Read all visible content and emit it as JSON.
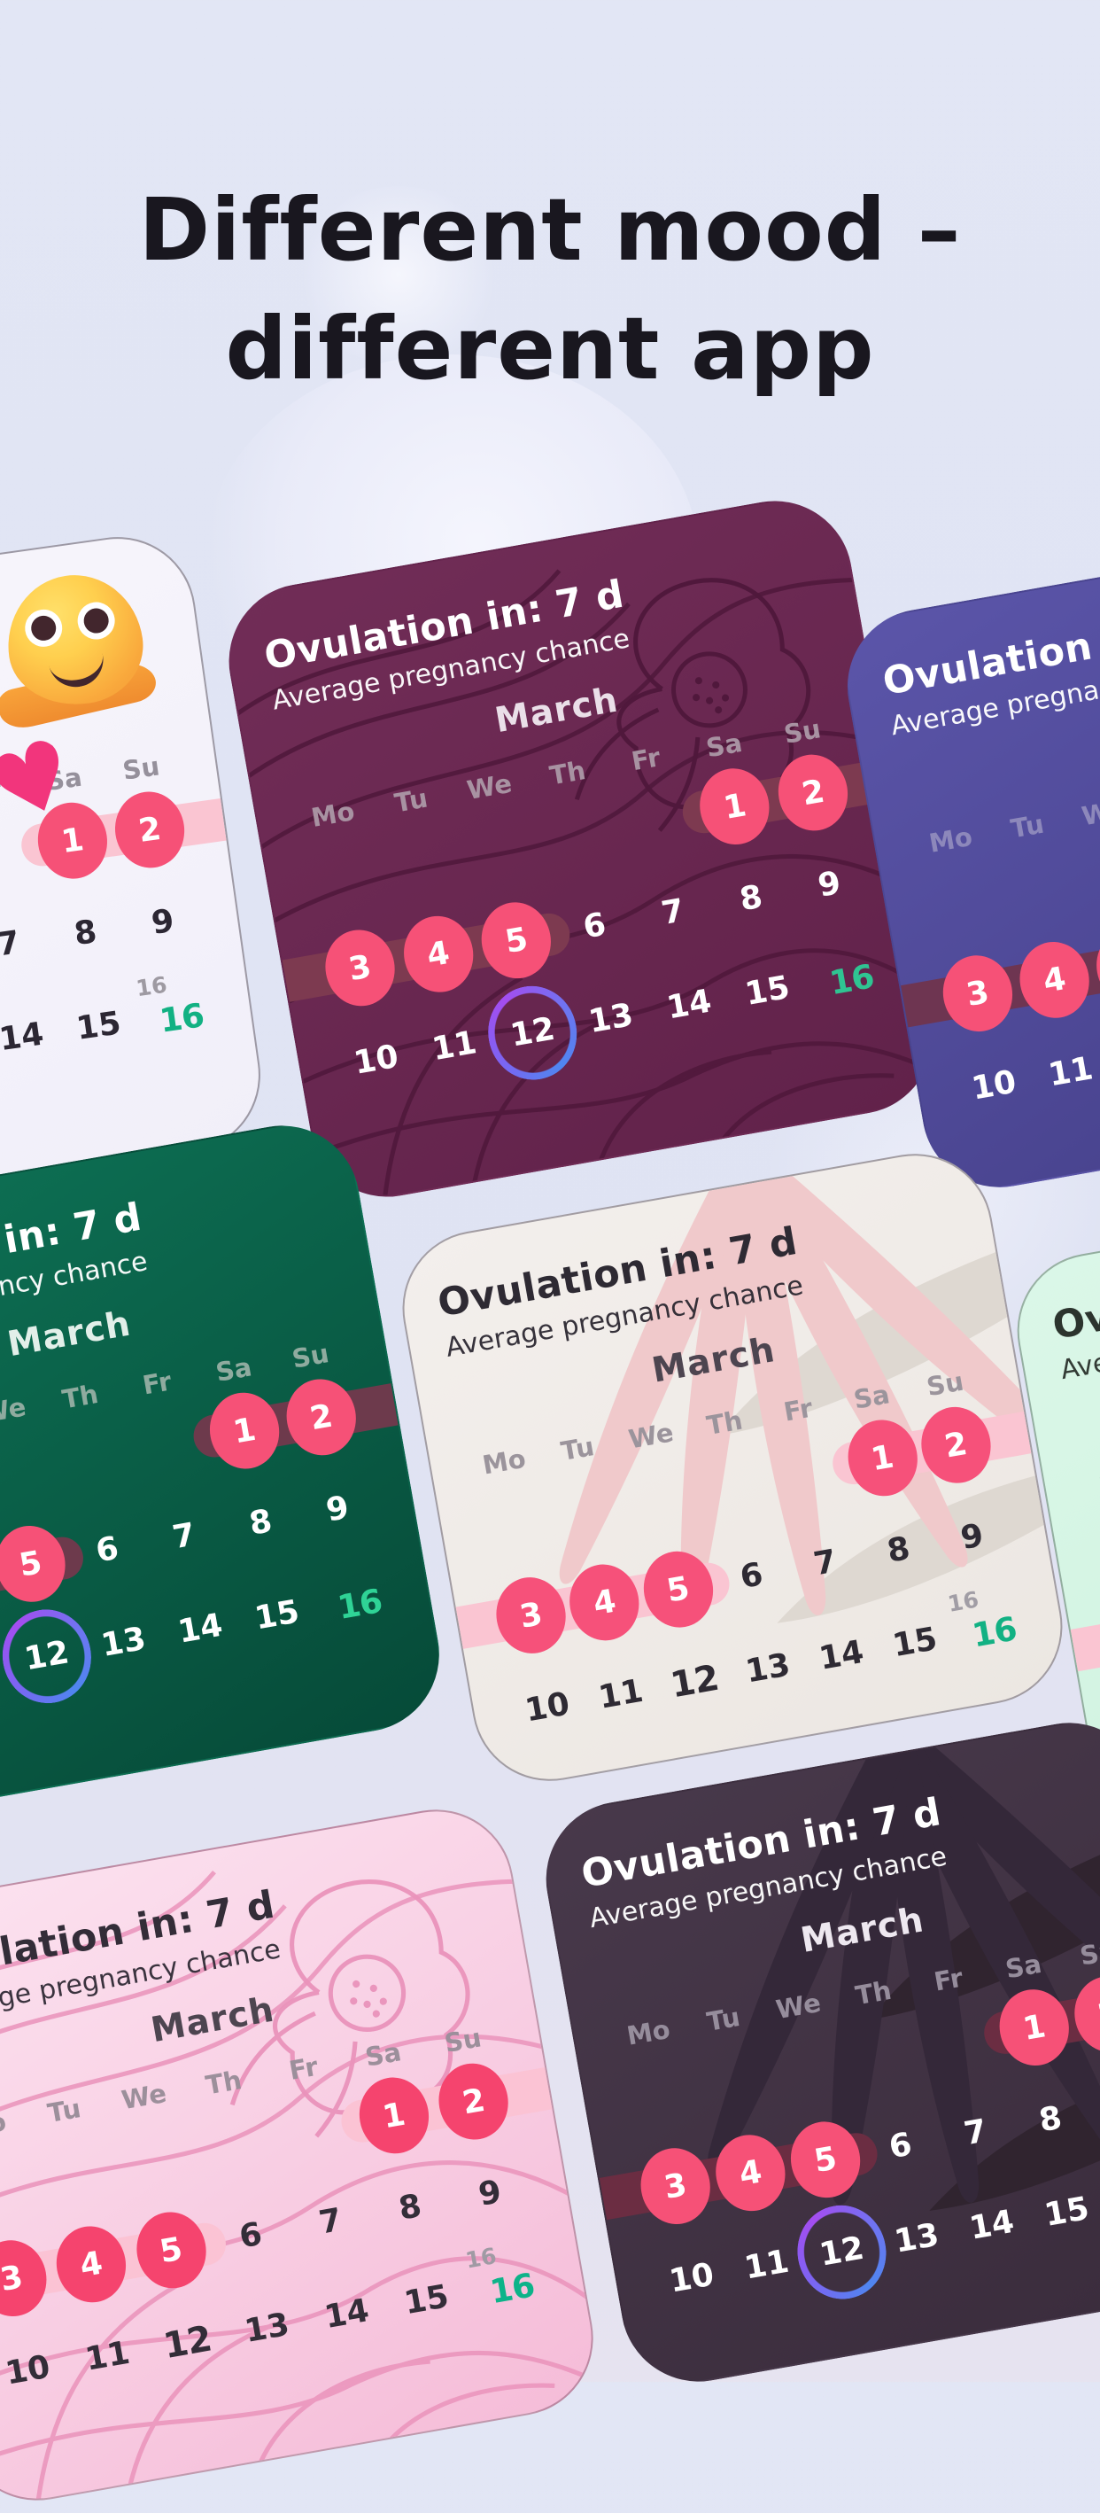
{
  "page": {
    "title_line1": "Different mood –",
    "title_line2": "different app",
    "background": "#e0e4f3",
    "title_color": "#19171f"
  },
  "calendar": {
    "ovulation_label": "Ovulation in: 7 d",
    "subtitle": "Average pregnancy chance",
    "month": "March",
    "weekdays": [
      "Mo",
      "Tu",
      "We",
      "Th",
      "Fr",
      "Sa",
      "Su"
    ],
    "week1_days": [
      "1",
      "2"
    ],
    "week2_days": [
      "3",
      "4",
      "5",
      "6",
      "7",
      "8",
      "9"
    ],
    "week3_days": [
      "10",
      "11",
      "12",
      "13",
      "14",
      "15"
    ],
    "today_day": "16",
    "ghost_day": "16",
    "period_days": [
      "1",
      "2",
      "3",
      "4",
      "5"
    ],
    "ovulation_ring_day": "12"
  },
  "emoji_card": {
    "emoji_name": "melting-face-emoji",
    "heart_glyph": "♥"
  },
  "accent_colors": {
    "period_pink": "#f6517a",
    "today_green": "#12b183",
    "ring_gradient": [
      "#4f86f0",
      "#a44df0"
    ]
  },
  "cards": [
    {
      "id": "white",
      "label": "white-emoji-theme",
      "pattern": "none",
      "has_emoji": true,
      "show_header": false,
      "twelve": "bold",
      "ghost16": true,
      "colors": {
        "bg1": "#f8f6fc",
        "bg2": "#f1eff9",
        "text": "#2c2733",
        "weekday": "#95909b",
        "month": "#4a434f",
        "band": "#fac5d2",
        "circle": "#f65177",
        "ctext": "#ffffff",
        "today": "#12b183",
        "ghost": "#9e9aa2",
        "pat": "transparent",
        "pat2": "transparent",
        "border": "rgba(85,80,95,0.55)"
      }
    },
    {
      "id": "maroon",
      "label": "maroon-floral-theme",
      "pattern": "floral",
      "has_emoji": false,
      "show_header": true,
      "twelve": "ring",
      "ghost16": false,
      "colors": {
        "bg1": "#712d57",
        "bg2": "#61224a",
        "text": "#ffffff",
        "weekday": "#a892a2",
        "month": "#eadfe8",
        "band": "#7d3a50",
        "circle": "#f65177",
        "ctext": "#ffffff",
        "today": "#2fc492",
        "ghost": "#b9a9b5",
        "pat": "#4f183b",
        "pat2": "transparent",
        "border": "transparent"
      }
    },
    {
      "id": "indigo",
      "label": "indigo-theme",
      "pattern": "none",
      "has_emoji": false,
      "show_header": true,
      "twelve": "ring",
      "ghost16": false,
      "colors": {
        "bg1": "#5b55a9",
        "bg2": "#443f88",
        "text": "#ffffff",
        "weekday": "#8d88bb",
        "month": "#e8e5f4",
        "band": "#6e3551",
        "circle": "#f65177",
        "ctext": "#ffffff",
        "today": "#2fd396",
        "ghost": "#aaa5cc",
        "pat": "transparent",
        "pat2": "transparent",
        "border": "transparent"
      }
    },
    {
      "id": "mint",
      "label": "mint-theme",
      "pattern": "none",
      "has_emoji": false,
      "show_header": true,
      "twelve": "bold",
      "ghost16": true,
      "colors": {
        "bg1": "#dbf7e8",
        "bg2": "#cdf2de",
        "text": "#2c342e",
        "weekday": "#8fa79a",
        "month": "#3c463f",
        "band": "#fac5d2",
        "circle": "#f65177",
        "ctext": "#ffffff",
        "today": "#12b183",
        "ghost": "#9aa39d",
        "pat": "transparent",
        "pat2": "transparent",
        "border": "rgba(70,90,80,0.45)"
      }
    },
    {
      "id": "green",
      "label": "emerald-theme",
      "pattern": "none",
      "has_emoji": false,
      "show_header": true,
      "twelve": "ring",
      "ghost16": false,
      "colors": {
        "bg1": "#0e7356",
        "bg2": "#064a38",
        "text": "#ffffff",
        "weekday": "#8fab9f",
        "month": "#e2efe9",
        "band": "#6d3a4c",
        "circle": "#f65177",
        "ctext": "#ffffff",
        "today": "#2fd396",
        "ghost": "#9fbcb0",
        "pat": "transparent",
        "pat2": "transparent",
        "border": "transparent"
      }
    },
    {
      "id": "cream",
      "label": "cream-palm-theme",
      "pattern": "palm",
      "has_emoji": false,
      "show_header": true,
      "twelve": "bold",
      "ghost16": true,
      "colors": {
        "bg1": "#f3efec",
        "bg2": "#ece7e2",
        "text": "#2e2a33",
        "weekday": "#9b949c",
        "month": "#4d4550",
        "band": "#fac5d2",
        "circle": "#f6517a",
        "ctext": "#ffffff",
        "today": "#12b183",
        "ghost": "#a19da5",
        "pat": "#f0c9cb",
        "pat2": "#ded8d1",
        "border": "rgba(85,80,95,0.5)"
      }
    },
    {
      "id": "pink",
      "label": "pink-floral-theme",
      "pattern": "floral",
      "has_emoji": false,
      "show_header": true,
      "twelve": "bold",
      "ghost16": true,
      "colors": {
        "bg1": "#fce3f0",
        "bg2": "#f5bcd8",
        "text": "#332d38",
        "weekday": "#9c8f9b",
        "month": "#4d4550",
        "band": "#fbc3d4",
        "circle": "#f5446e",
        "ctext": "#ffffff",
        "today": "#0db389",
        "ghost": "#a09aa4",
        "pat": "#ea93bb",
        "pat2": "transparent",
        "border": "rgba(120,70,95,0.45)"
      }
    },
    {
      "id": "dark",
      "label": "dark-palm-theme",
      "pattern": "palm",
      "has_emoji": false,
      "show_header": true,
      "twelve": "ring",
      "ghost16": false,
      "colors": {
        "bg1": "#48394b",
        "bg2": "#3a2c3c",
        "text": "#ffffff",
        "weekday": "#968d9c",
        "month": "#eee8f0",
        "band": "#6b2d42",
        "circle": "#f65177",
        "ctext": "#ffffff",
        "today": "#2fd396",
        "ghost": "#8d8494",
        "pat": "#342839",
        "pat2": "#30242f",
        "border": "transparent"
      }
    }
  ]
}
